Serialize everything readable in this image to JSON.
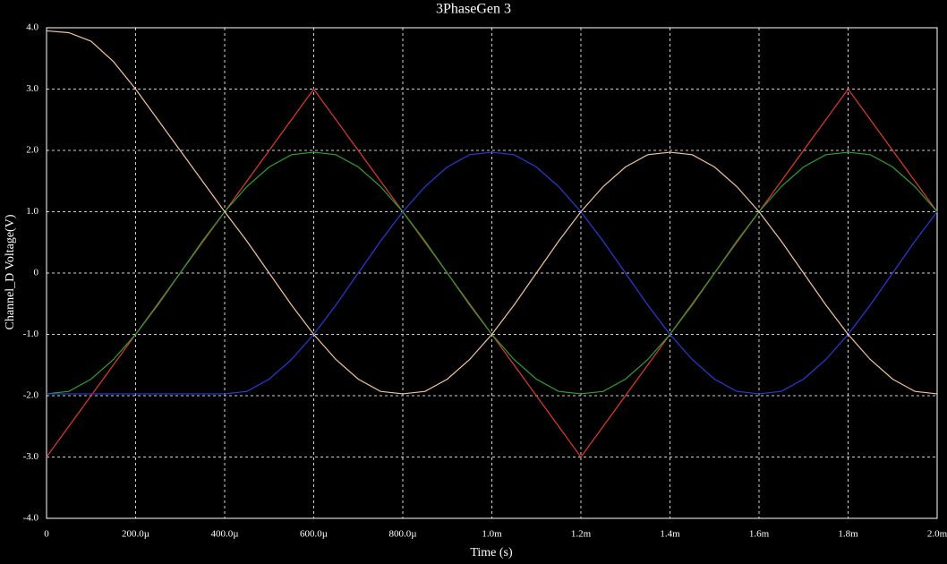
{
  "chart_data": {
    "type": "line",
    "title": "3PhaseGen 3",
    "x_label": "Time (s)",
    "y_label": "Channel_D Voltage(V)",
    "x": [
      0,
      5e-05,
      0.0001,
      0.00015,
      0.0002,
      0.00025,
      0.0003,
      0.00035,
      0.0004,
      0.00045,
      0.0005,
      0.00055,
      0.0006,
      0.00065,
      0.0007,
      0.00075,
      0.0008,
      0.00085,
      0.0009,
      0.00095,
      0.001,
      0.00105,
      0.0011,
      0.00115,
      0.0012,
      0.00125,
      0.0013,
      0.00135,
      0.0014,
      0.00145,
      0.0015,
      0.00155,
      0.0016,
      0.00165,
      0.0017,
      0.00175,
      0.0018,
      0.00185,
      0.0019,
      0.00195,
      0.002
    ],
    "series": [
      {
        "color": "#e03a2a",
        "values": [
          -3,
          -2.5,
          -2,
          -1.5,
          -1,
          -0.5,
          0,
          0.5,
          1,
          1.5,
          2,
          2.5,
          3,
          2.5,
          2,
          1.5,
          1,
          0.5,
          0,
          -0.5,
          -1,
          -1.5,
          -2,
          -2.5,
          -3,
          -2.5,
          -2,
          -1.5,
          -1,
          -0.5,
          0,
          0.5,
          1,
          1.5,
          2,
          2.5,
          3,
          2.5,
          2,
          1.5,
          1
        ]
      },
      {
        "color": "#2ea02e",
        "values": [
          -1.97,
          -1.93,
          -1.73,
          -1.41,
          -1,
          -0.52,
          0,
          0.52,
          1,
          1.41,
          1.73,
          1.93,
          1.97,
          1.93,
          1.73,
          1.41,
          1,
          0.52,
          0,
          -0.52,
          -1,
          -1.41,
          -1.73,
          -1.93,
          -1.97,
          -1.93,
          -1.73,
          -1.41,
          -1,
          -0.52,
          0,
          0.52,
          1,
          1.41,
          1.73,
          1.93,
          1.97,
          1.93,
          1.73,
          1.41,
          1
        ]
      },
      {
        "color": "#2a3ad8",
        "values": [
          -1.97,
          -1.97,
          -1.97,
          -1.97,
          -1.97,
          -1.97,
          -1.97,
          -1.97,
          -1.97,
          -1.93,
          -1.73,
          -1.41,
          -1,
          -0.52,
          0,
          0.52,
          1,
          1.41,
          1.73,
          1.93,
          1.97,
          1.93,
          1.73,
          1.41,
          1,
          0.52,
          0,
          -0.52,
          -1,
          -1.41,
          -1.73,
          -1.93,
          -1.97,
          -1.93,
          -1.73,
          -1.41,
          -1,
          -0.52,
          0,
          0.52,
          1
        ]
      },
      {
        "color": "#f2c49a",
        "values": [
          3.95,
          3.92,
          3.78,
          3.45,
          3.0,
          2.5,
          2.0,
          1.5,
          1,
          0.52,
          0,
          -0.52,
          -1,
          -1.41,
          -1.73,
          -1.93,
          -1.97,
          -1.93,
          -1.73,
          -1.41,
          -1,
          -0.52,
          0,
          0.52,
          1,
          1.41,
          1.73,
          1.93,
          1.97,
          1.93,
          1.73,
          1.41,
          1,
          0.52,
          0,
          -0.52,
          -1,
          -1.41,
          -1.73,
          -1.93,
          -1.97
        ]
      }
    ],
    "xlim": [
      0,
      0.002
    ],
    "ylim": [
      -4,
      4
    ],
    "xticks": [
      0,
      {
        "value": 0.0002,
        "label": "200.0µ"
      },
      {
        "value": 0.0004,
        "label": "400.0µ"
      },
      {
        "value": 0.0006,
        "label": "600.0µ"
      },
      {
        "value": 0.0008,
        "label": "800.0µ"
      },
      {
        "value": 0.001,
        "label": "1.0m"
      },
      {
        "value": 0.0012,
        "label": "1.2m"
      },
      {
        "value": 0.0014,
        "label": "1.4m"
      },
      {
        "value": 0.0016,
        "label": "1.6m"
      },
      {
        "value": 0.0018,
        "label": "1.8m"
      },
      {
        "value": 0.002,
        "label": "2.0m"
      }
    ],
    "yticks": [
      {
        "value": -4,
        "label": "-4.0"
      },
      {
        "value": -3,
        "label": "-3.0"
      },
      {
        "value": -2,
        "label": "-2.0"
      },
      {
        "value": -1,
        "label": "-1.0"
      },
      0,
      {
        "value": 1,
        "label": "1.0"
      },
      {
        "value": 2,
        "label": "2.0"
      },
      {
        "value": 3,
        "label": "3.0"
      },
      {
        "value": 4,
        "label": "4.0"
      }
    ],
    "grid": true
  }
}
